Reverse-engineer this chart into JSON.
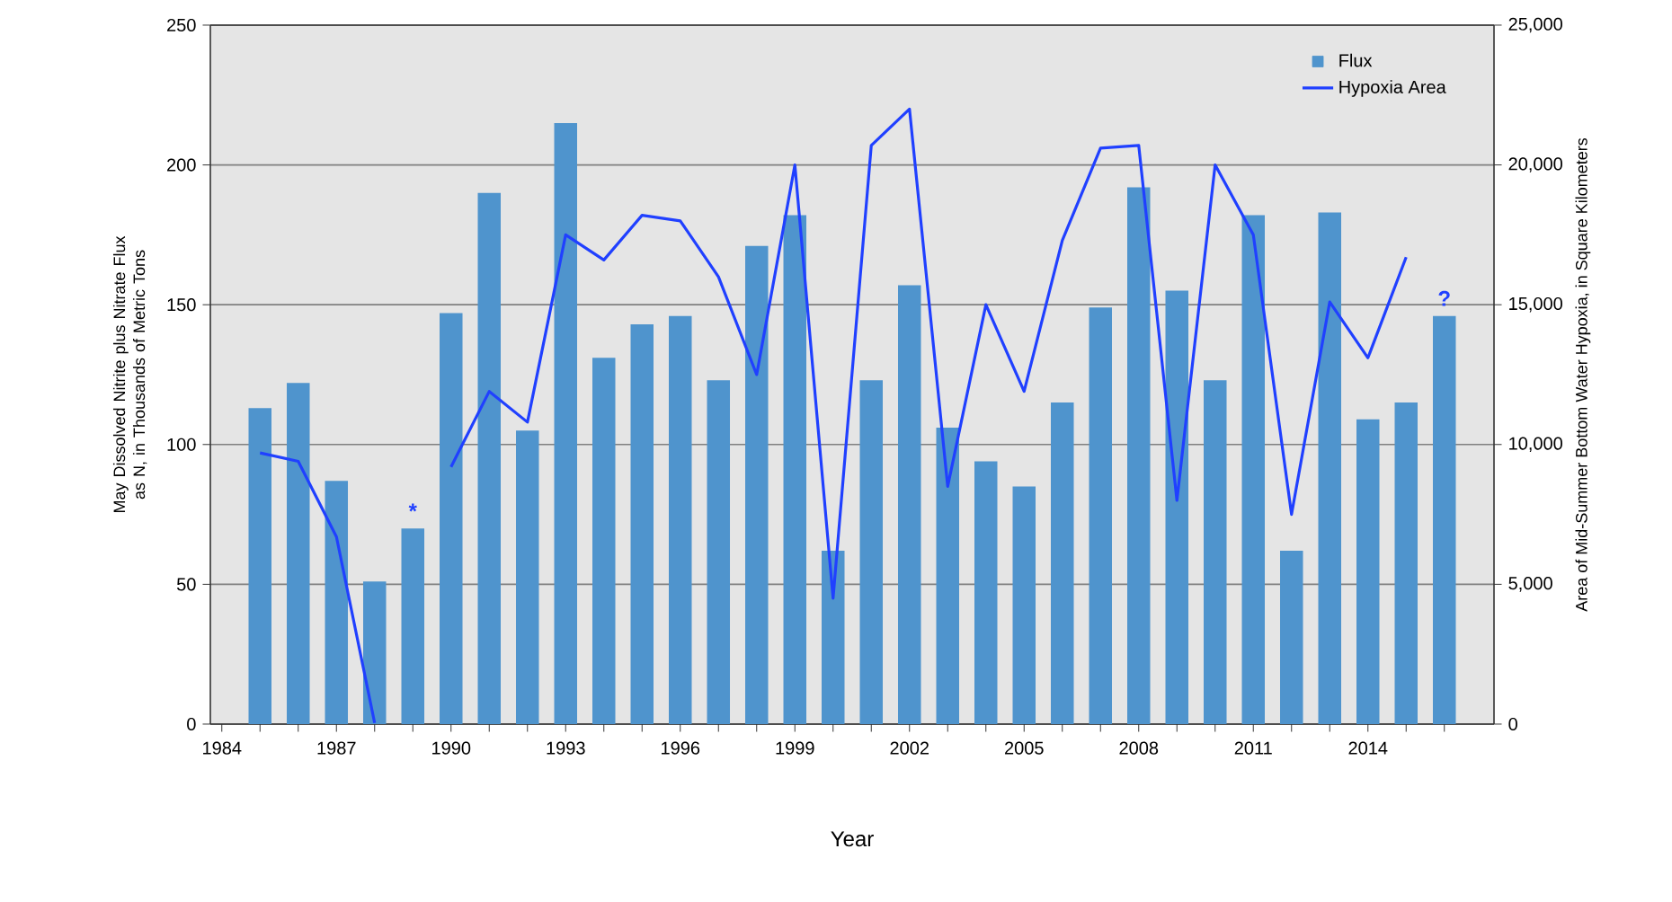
{
  "chart_data": {
    "type": "bar",
    "xlabel": "Year",
    "ylabel": "May Dissolved Nitrite plus Nitrate Flux as N, in Thousands of Metric Tons",
    "y2label": "Area of Mid-Summer Bottom Water Hypoxia, in Square Kilometers",
    "x": [
      1985,
      1986,
      1987,
      1988,
      1989,
      1990,
      1991,
      1992,
      1993,
      1994,
      1995,
      1996,
      1997,
      1998,
      1999,
      2000,
      2001,
      2002,
      2003,
      2004,
      2005,
      2006,
      2007,
      2008,
      2009,
      2010,
      2011,
      2012,
      2013,
      2014,
      2015,
      2016
    ],
    "series": [
      {
        "name": "Flux",
        "color": "#4f94cd",
        "values": [
          113,
          122,
          87,
          51,
          70,
          147,
          190,
          105,
          215,
          131,
          143,
          146,
          123,
          171,
          182,
          62,
          123,
          157,
          106,
          94,
          85,
          115,
          149,
          192,
          155,
          123,
          182,
          62,
          183,
          109,
          115,
          146
        ]
      },
      {
        "name": "Hypoxia Area",
        "type": "line",
        "axis": "y2",
        "color": "#2040ff",
        "values": [
          9700,
          9400,
          6700,
          40,
          null,
          9200,
          11900,
          10800,
          17500,
          16600,
          18200,
          18000,
          16000,
          12500,
          20000,
          4500,
          20700,
          22000,
          8500,
          15000,
          11900,
          17300,
          20600,
          20700,
          8000,
          20000,
          17500,
          7500,
          15100,
          13100,
          16700,
          null
        ]
      }
    ],
    "xlim": [
      1983.7,
      2017.3
    ],
    "xticks": [
      1984,
      {
        "value": 1985,
        "label": null
      },
      {
        "value": 1986,
        "label": null
      },
      1987,
      {
        "value": 1988,
        "label": null
      },
      {
        "value": 1989,
        "label": null
      },
      1990,
      {
        "value": 1991,
        "label": null
      },
      {
        "value": 1992,
        "label": null
      },
      1993,
      {
        "value": 1994,
        "label": null
      },
      {
        "value": 1995,
        "label": null
      },
      1996,
      {
        "value": 1997,
        "label": null
      },
      {
        "value": 1998,
        "label": null
      },
      1999,
      {
        "value": 2000,
        "label": null
      },
      {
        "value": 2001,
        "label": null
      },
      2002,
      {
        "value": 2003,
        "label": null
      },
      {
        "value": 2004,
        "label": null
      },
      2005,
      {
        "value": 2006,
        "label": null
      },
      {
        "value": 2007,
        "label": null
      },
      2008,
      {
        "value": 2009,
        "label": null
      },
      {
        "value": 2010,
        "label": null
      },
      2011,
      {
        "value": 2012,
        "label": null
      },
      {
        "value": 2013,
        "label": null
      },
      2014,
      {
        "value": 2015,
        "label": null
      },
      {
        "value": 2016,
        "label": null
      }
    ],
    "ylim": [
      0,
      250
    ],
    "yticks": [
      0,
      50,
      100,
      150,
      200,
      250
    ],
    "y2lim": [
      0,
      25000
    ],
    "y2ticks": [
      0,
      {
        "value": 5000,
        "label": "5,000"
      },
      {
        "value": 10000,
        "label": "10,000"
      },
      {
        "value": 15000,
        "label": "15,000"
      },
      {
        "value": 20000,
        "label": "20,000"
      },
      {
        "value": 25000,
        "label": "25,000"
      }
    ],
    "annotations": [
      {
        "text": "*",
        "x": 1989,
        "y": 70
      },
      {
        "text": "?",
        "x": 2016,
        "y": 146
      }
    ],
    "grid": "y",
    "legend": "top right"
  }
}
